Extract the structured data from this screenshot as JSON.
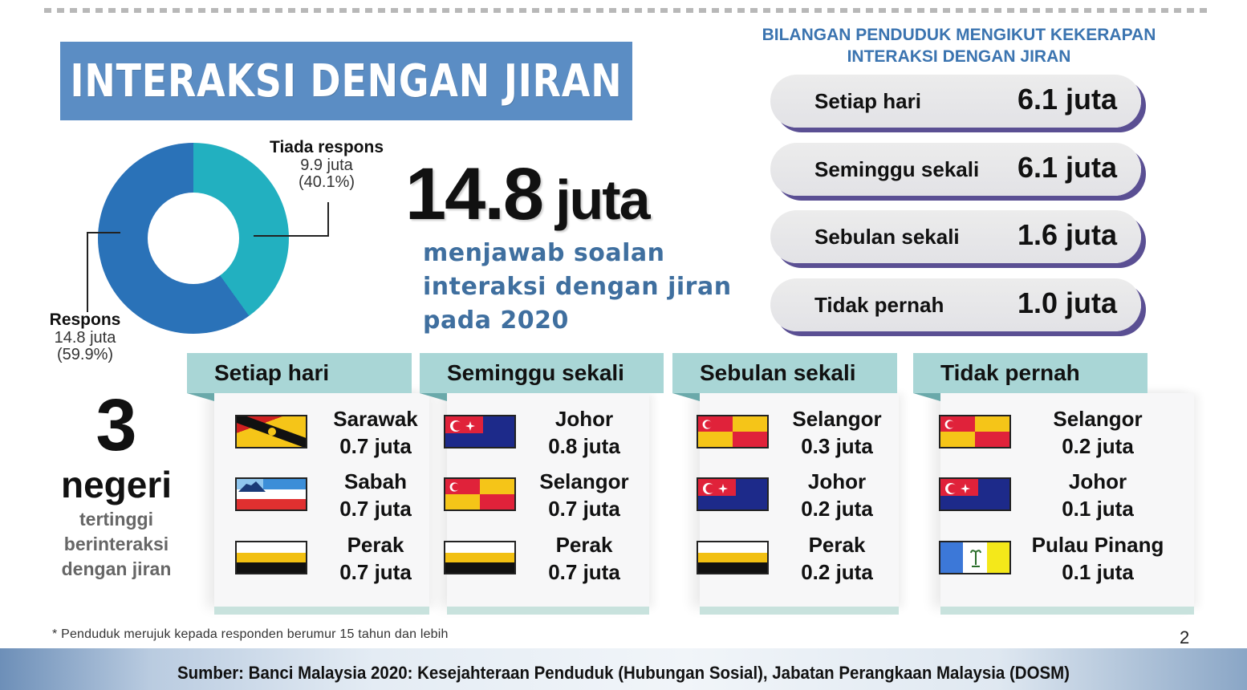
{
  "title": "INTERAKSI DENGAN JIRAN",
  "donut": {
    "tiada": {
      "label": "Tiada respons",
      "value": "9.9 juta",
      "pct": "(40.1%)",
      "color": "#22b0c0"
    },
    "respons": {
      "label": "Respons",
      "value": "14.8 juta",
      "pct": "(59.9%)",
      "color": "#2a72b8"
    }
  },
  "headline": {
    "number": "14.8",
    "unit": "juta",
    "lines": [
      "menjawab soalan",
      "interaksi dengan jiran",
      "pada 2020"
    ]
  },
  "frequency": {
    "heading_line1": "BILANGAN PENDUDUK MENGIKUT KEKERAPAN",
    "heading_line2": "INTERAKSI DENGAN JIRAN",
    "items": [
      {
        "label": "Setiap hari",
        "value": "6.1 juta"
      },
      {
        "label": "Seminggu sekali",
        "value": "6.1 juta"
      },
      {
        "label": "Sebulan sekali",
        "value": "1.6 juta"
      },
      {
        "label": "Tidak pernah",
        "value": "1.0 juta"
      }
    ]
  },
  "top_states": {
    "number": "3",
    "word": "negeri",
    "desc": [
      "tertinggi",
      "berinteraksi",
      "dengan jiran"
    ]
  },
  "cards": [
    {
      "title": "Setiap hari",
      "states": [
        {
          "name": "Sarawak",
          "value": "0.7 juta",
          "flag": "sarawak"
        },
        {
          "name": "Sabah",
          "value": "0.7 juta",
          "flag": "sabah"
        },
        {
          "name": "Perak",
          "value": "0.7 juta",
          "flag": "perak"
        }
      ]
    },
    {
      "title": "Seminggu sekali",
      "states": [
        {
          "name": "Johor",
          "value": "0.8 juta",
          "flag": "johor"
        },
        {
          "name": "Selangor",
          "value": "0.7 juta",
          "flag": "selangor"
        },
        {
          "name": "Perak",
          "value": "0.7 juta",
          "flag": "perak"
        }
      ]
    },
    {
      "title": "Sebulan sekali",
      "states": [
        {
          "name": "Selangor",
          "value": "0.3 juta",
          "flag": "selangor"
        },
        {
          "name": "Johor",
          "value": "0.2 juta",
          "flag": "johor"
        },
        {
          "name": "Perak",
          "value": "0.2 juta",
          "flag": "perak"
        }
      ]
    },
    {
      "title": "Tidak pernah",
      "states": [
        {
          "name": "Selangor",
          "value": "0.2 juta",
          "flag": "selangor"
        },
        {
          "name": "Johor",
          "value": "0.1 juta",
          "flag": "johor"
        },
        {
          "name": "Pulau Pinang",
          "value": "0.1 juta",
          "flag": "pulau-pinang"
        }
      ]
    }
  ],
  "footnote": "* Penduduk merujuk kepada responden berumur 15 tahun dan lebih",
  "page_number": "2",
  "source": "Sumber: Banci Malaysia 2020: Kesejahteraan Penduduk (Hubungan Sosial), Jabatan Perangkaan Malaysia (DOSM)",
  "chart_data": [
    {
      "type": "pie",
      "title": "Respons soalan interaksi dengan jiran",
      "categories": [
        "Respons",
        "Tiada respons"
      ],
      "values": [
        14.8,
        9.9
      ],
      "percentages": [
        59.9,
        40.1
      ],
      "unit": "juta",
      "colors": [
        "#2a72b8",
        "#22b0c0"
      ],
      "donut": true
    },
    {
      "type": "table",
      "title": "BILANGAN PENDUDUK MENGIKUT KEKERAPAN INTERAKSI DENGAN JIRAN",
      "categories": [
        "Setiap hari",
        "Seminggu sekali",
        "Sebulan sekali",
        "Tidak pernah"
      ],
      "values": [
        6.1,
        6.1,
        1.6,
        1.0
      ],
      "unit": "juta"
    },
    {
      "type": "table",
      "title": "3 negeri tertinggi berinteraksi dengan jiran",
      "series": [
        {
          "name": "Setiap hari",
          "categories": [
            "Sarawak",
            "Sabah",
            "Perak"
          ],
          "values": [
            0.7,
            0.7,
            0.7
          ]
        },
        {
          "name": "Seminggu sekali",
          "categories": [
            "Johor",
            "Selangor",
            "Perak"
          ],
          "values": [
            0.8,
            0.7,
            0.7
          ]
        },
        {
          "name": "Sebulan sekali",
          "categories": [
            "Selangor",
            "Johor",
            "Perak"
          ],
          "values": [
            0.3,
            0.2,
            0.2
          ]
        },
        {
          "name": "Tidak pernah",
          "categories": [
            "Selangor",
            "Johor",
            "Pulau Pinang"
          ],
          "values": [
            0.2,
            0.1,
            0.1
          ]
        }
      ],
      "unit": "juta"
    }
  ]
}
